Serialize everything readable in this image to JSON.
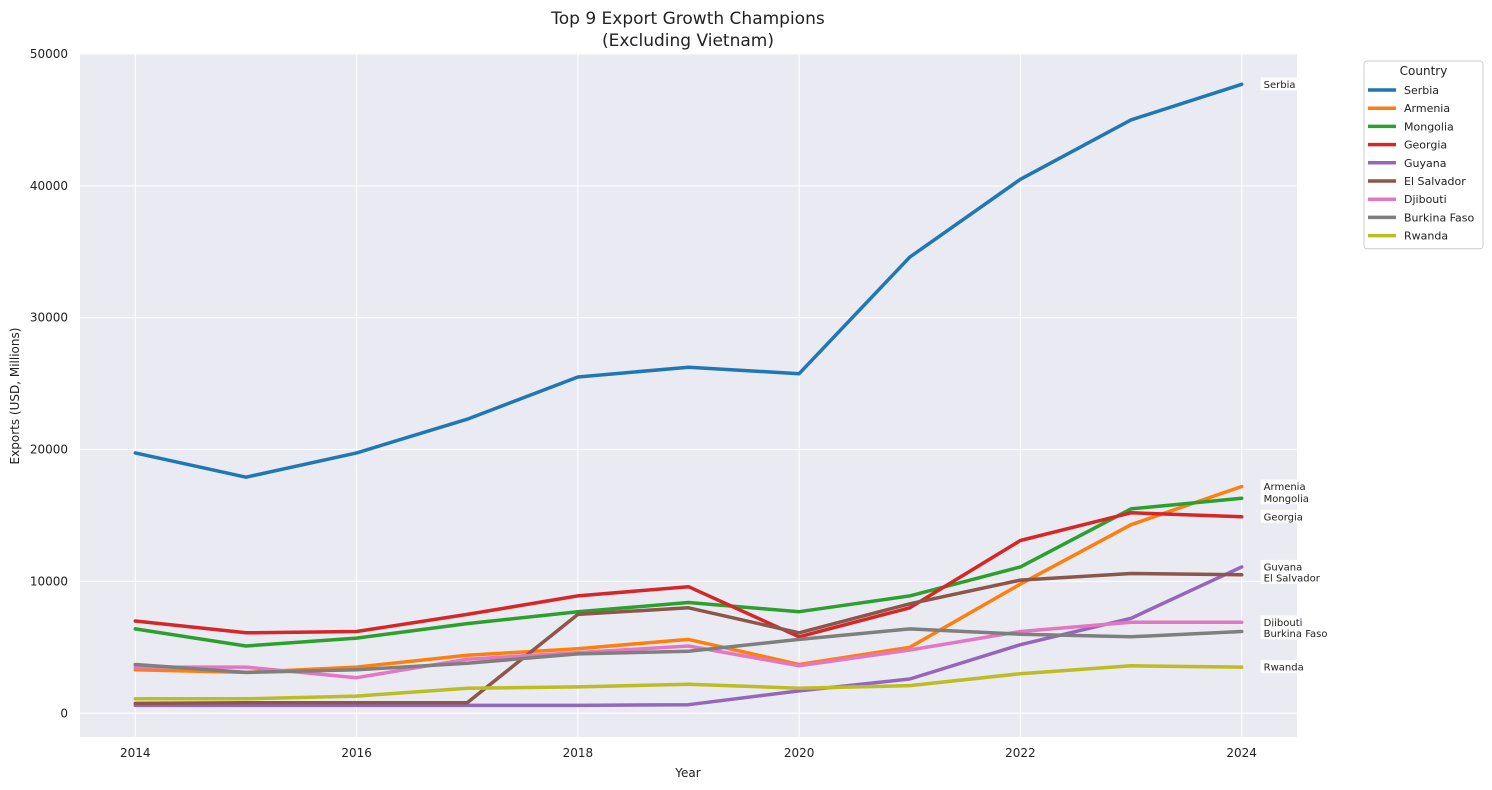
{
  "chart_data": {
    "type": "line",
    "title": "Top 9 Export Growth Champions",
    "subtitle": "(Excluding Vietnam)",
    "xlabel": "Year",
    "ylabel": "Exports (USD, Millions)",
    "xlim": [
      2013.5,
      2024.5
    ],
    "ylim": [
      -1800,
      50000
    ],
    "x_ticks": [
      2014,
      2016,
      2018,
      2020,
      2022,
      2024
    ],
    "y_ticks": [
      0,
      10000,
      20000,
      30000,
      40000,
      50000
    ],
    "grid": true,
    "legend": {
      "title": "Country",
      "placement": "outside top-right"
    },
    "x": [
      2014,
      2015,
      2016,
      2017,
      2018,
      2019,
      2020,
      2021,
      2022,
      2023,
      2024
    ],
    "series": [
      {
        "name": "Serbia",
        "color": "#1f77b4",
        "values": [
          19750,
          17900,
          19750,
          22300,
          25500,
          26250,
          25750,
          34600,
          40500,
          45000,
          47700
        ]
      },
      {
        "name": "Armenia",
        "color": "#ff7f0e",
        "values": [
          3300,
          3100,
          3500,
          4400,
          4900,
          5600,
          3700,
          5000,
          9800,
          14300,
          17200
        ]
      },
      {
        "name": "Mongolia",
        "color": "#2ca02c",
        "values": [
          6400,
          5100,
          5700,
          6800,
          7700,
          8400,
          7700,
          8900,
          11100,
          15500,
          16300
        ]
      },
      {
        "name": "Georgia",
        "color": "#d62728",
        "values": [
          7000,
          6100,
          6200,
          7500,
          8900,
          9600,
          5800,
          8000,
          13100,
          15200,
          14900
        ]
      },
      {
        "name": "Guyana",
        "color": "#9467bd",
        "values": [
          600,
          600,
          600,
          600,
          600,
          650,
          1700,
          2600,
          5200,
          7200,
          11100
        ]
      },
      {
        "name": "El Salvador",
        "color": "#8c564b",
        "values": [
          750,
          800,
          800,
          800,
          7500,
          8000,
          6100,
          8300,
          10100,
          10600,
          10500
        ]
      },
      {
        "name": "Djibouti",
        "color": "#e377c2",
        "values": [
          3500,
          3500,
          2700,
          4100,
          4600,
          5100,
          3600,
          4800,
          6200,
          6900,
          6900
        ]
      },
      {
        "name": "Burkina Faso",
        "color": "#7f7f7f",
        "values": [
          3700,
          3100,
          3300,
          3800,
          4500,
          4700,
          5600,
          6400,
          6000,
          5800,
          6200
        ]
      },
      {
        "name": "Rwanda",
        "color": "#bcbd22",
        "values": [
          1100,
          1100,
          1300,
          1900,
          2000,
          2200,
          1900,
          2100,
          3000,
          3600,
          3500
        ]
      }
    ]
  }
}
